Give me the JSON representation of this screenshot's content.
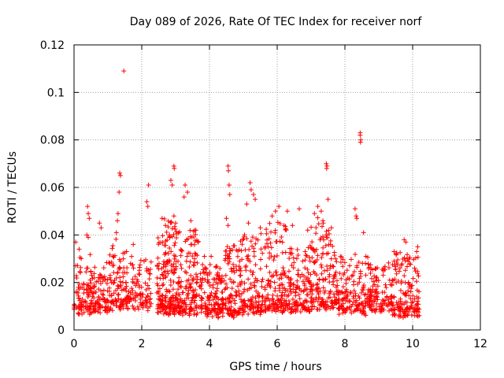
{
  "chart_data": {
    "type": "scatter",
    "title": "Day 089 of 2026, Rate Of TEC Index for receiver norf",
    "xlabel": "GPS time / hours",
    "ylabel": "ROTI / TECUs",
    "xlim": [
      0,
      12
    ],
    "ylim": [
      0,
      0.12
    ],
    "xticks": [
      0,
      2,
      4,
      6,
      8,
      10,
      12
    ],
    "yticks": [
      0,
      0.02,
      0.04,
      0.06,
      0.08,
      0.1,
      0.12
    ],
    "xtick_labels": [
      "0",
      "2",
      "4",
      "6",
      "8",
      "10",
      "12"
    ],
    "ytick_labels": [
      "0",
      "0.02",
      "0.04",
      "0.06",
      "0.08",
      "0.1",
      "0.12"
    ],
    "grid": true,
    "marker": "+",
    "color": "#ff0000",
    "series": [
      {
        "name": "ROTI",
        "points": [
          [
            1.47,
            0.109
          ],
          [
            8.45,
            0.083
          ],
          [
            8.45,
            0.082
          ],
          [
            8.47,
            0.08
          ],
          [
            8.46,
            0.079
          ],
          [
            2.95,
            0.069
          ],
          [
            2.96,
            0.068
          ],
          [
            4.55,
            0.069
          ],
          [
            4.56,
            0.067
          ],
          [
            7.45,
            0.07
          ],
          [
            7.47,
            0.069
          ],
          [
            7.46,
            0.068
          ],
          [
            1.35,
            0.066
          ],
          [
            1.37,
            0.065
          ],
          [
            1.33,
            0.058
          ],
          [
            2.2,
            0.061
          ],
          [
            2.15,
            0.054
          ],
          [
            2.18,
            0.052
          ],
          [
            2.86,
            0.063
          ],
          [
            2.9,
            0.061
          ],
          [
            3.28,
            0.061
          ],
          [
            3.35,
            0.058
          ],
          [
            3.25,
            0.056
          ],
          [
            4.58,
            0.061
          ],
          [
            4.6,
            0.057
          ],
          [
            5.2,
            0.062
          ],
          [
            5.23,
            0.059
          ],
          [
            5.3,
            0.057
          ],
          [
            5.35,
            0.055
          ],
          [
            5.1,
            0.053
          ],
          [
            7.5,
            0.055
          ],
          [
            7.2,
            0.052
          ],
          [
            7.3,
            0.05
          ],
          [
            7.1,
            0.049
          ],
          [
            6.65,
            0.051
          ],
          [
            6.3,
            0.05
          ],
          [
            6.05,
            0.052
          ],
          [
            5.95,
            0.05
          ],
          [
            5.85,
            0.048
          ],
          [
            8.3,
            0.051
          ],
          [
            8.33,
            0.048
          ],
          [
            8.35,
            0.047
          ],
          [
            0.4,
            0.052
          ],
          [
            0.42,
            0.049
          ],
          [
            0.45,
            0.047
          ],
          [
            0.38,
            0.04
          ],
          [
            0.42,
            0.039
          ],
          [
            0.75,
            0.045
          ],
          [
            0.8,
            0.043
          ],
          [
            1.3,
            0.049
          ],
          [
            1.28,
            0.046
          ],
          [
            1.25,
            0.041
          ],
          [
            2.6,
            0.047
          ],
          [
            2.7,
            0.044
          ],
          [
            2.95,
            0.048
          ],
          [
            3.0,
            0.045
          ],
          [
            3.45,
            0.046
          ],
          [
            3.6,
            0.042
          ],
          [
            4.5,
            0.047
          ],
          [
            4.55,
            0.044
          ],
          [
            5.15,
            0.045
          ],
          [
            5.5,
            0.043
          ],
          [
            6.2,
            0.044
          ],
          [
            6.45,
            0.044
          ],
          [
            6.9,
            0.042
          ],
          [
            7.35,
            0.046
          ],
          [
            7.6,
            0.043
          ],
          [
            8.55,
            0.041
          ],
          [
            8.62,
            0.031
          ],
          [
            9.75,
            0.038
          ],
          [
            9.8,
            0.037
          ],
          [
            10.15,
            0.035
          ],
          [
            10.12,
            0.033
          ],
          [
            9.45,
            0.033
          ],
          [
            9.52,
            0.032
          ],
          [
            0.05,
            0.037
          ],
          [
            0.15,
            0.034
          ],
          [
            1.75,
            0.036
          ],
          [
            1.55,
            0.033
          ],
          [
            4.05,
            0.031
          ],
          [
            3.85,
            0.031
          ]
        ],
        "clusters": [
          [
            0.0,
            0.6,
            0.006,
            0.03,
            110
          ],
          [
            0.6,
            1.0,
            0.007,
            0.026,
            70
          ],
          [
            1.0,
            1.5,
            0.008,
            0.035,
            90
          ],
          [
            1.5,
            2.3,
            0.008,
            0.028,
            110
          ],
          [
            2.45,
            2.65,
            0.007,
            0.04,
            60
          ],
          [
            2.65,
            3.1,
            0.006,
            0.045,
            150
          ],
          [
            3.1,
            3.7,
            0.006,
            0.04,
            140
          ],
          [
            3.7,
            4.4,
            0.005,
            0.025,
            150
          ],
          [
            4.4,
            4.9,
            0.005,
            0.035,
            110
          ],
          [
            4.9,
            5.6,
            0.006,
            0.04,
            140
          ],
          [
            5.6,
            6.4,
            0.007,
            0.042,
            170
          ],
          [
            6.4,
            7.0,
            0.007,
            0.035,
            120
          ],
          [
            7.0,
            7.8,
            0.008,
            0.045,
            170
          ],
          [
            7.8,
            8.7,
            0.006,
            0.03,
            150
          ],
          [
            8.7,
            9.4,
            0.007,
            0.026,
            120
          ],
          [
            9.4,
            10.2,
            0.005,
            0.03,
            160
          ]
        ]
      }
    ]
  }
}
